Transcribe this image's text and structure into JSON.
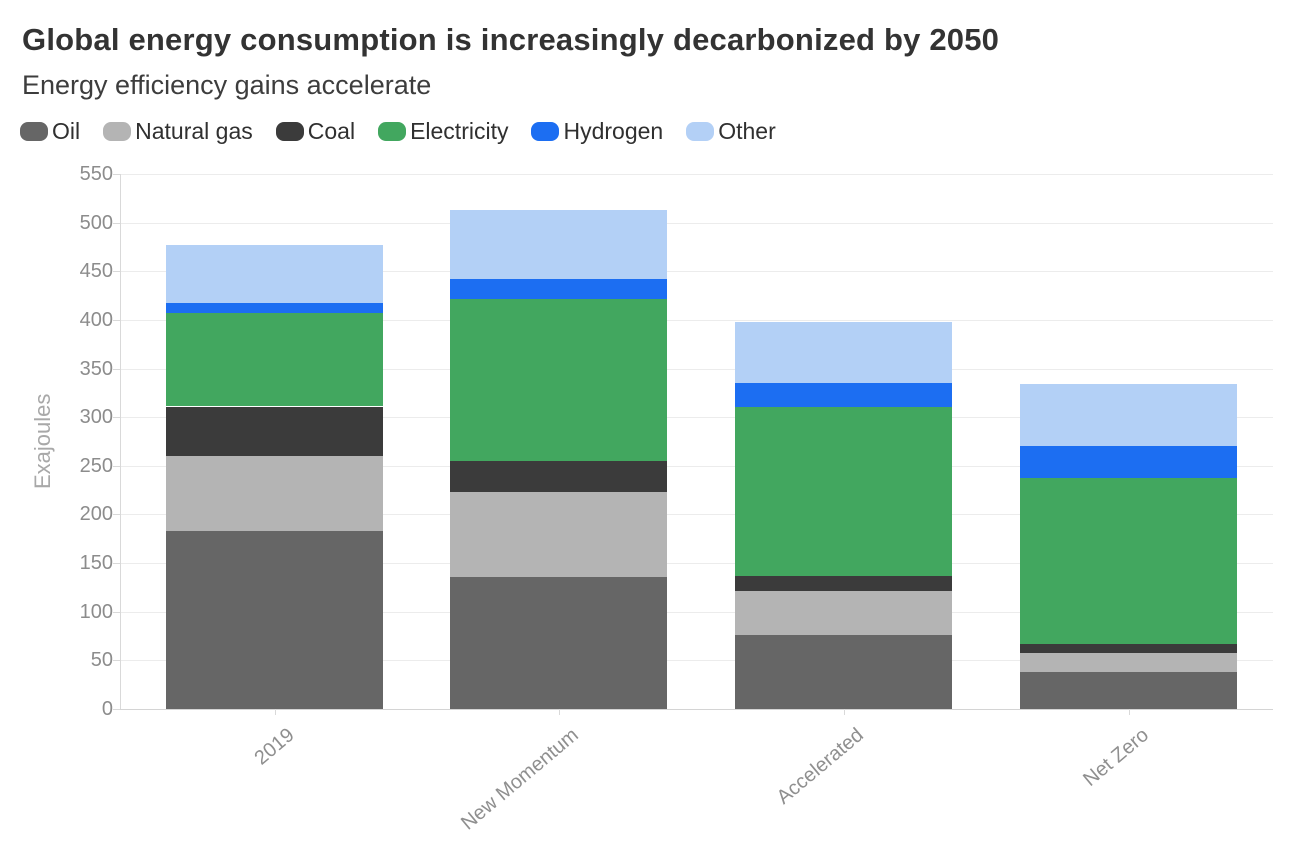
{
  "chart_data": {
    "type": "bar",
    "stacked": true,
    "title": "Global energy consumption is increasingly decarbonized by 2050",
    "subtitle": "Energy efficiency gains accelerate",
    "ylabel": "Exajoules",
    "categories": [
      "2019",
      "New Momentum",
      "Accelerated",
      "Net Zero"
    ],
    "series": [
      {
        "name": "Oil",
        "color": "#666666",
        "values": [
          183,
          136,
          76,
          38
        ]
      },
      {
        "name": "Natural gas",
        "color": "#b4b4b4",
        "values": [
          77,
          87,
          45,
          20
        ]
      },
      {
        "name": "Coal",
        "color": "#3b3b3b",
        "values": [
          51,
          32,
          16,
          9
        ]
      },
      {
        "name": "Electricity",
        "color": "#42a75f",
        "values": [
          96,
          167,
          173,
          171
        ]
      },
      {
        "name": "Hydrogen",
        "color": "#1c6ef2",
        "values": [
          10,
          20,
          25,
          32
        ]
      },
      {
        "name": "Other",
        "color": "#b3d0f6",
        "values": [
          60,
          71,
          63,
          64
        ]
      }
    ],
    "totals": [
      477,
      513,
      398,
      334
    ],
    "ylim": [
      0,
      550
    ],
    "yticks": [
      0,
      50,
      100,
      150,
      200,
      250,
      300,
      350,
      400,
      450,
      500,
      550
    ],
    "grid": true,
    "legend_position": "top-left",
    "xtick_angle_deg": -40
  }
}
